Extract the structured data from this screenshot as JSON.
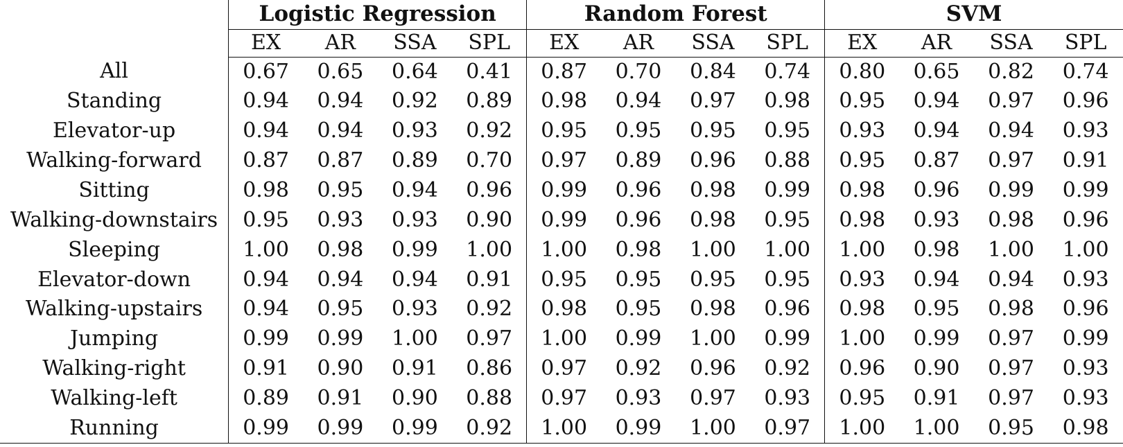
{
  "groups": [
    "Logistic Regression",
    "Random Forest",
    "SVM"
  ],
  "subcolumns": [
    "EX",
    "AR",
    "SSA",
    "SPL"
  ],
  "rows": [
    {
      "label": "All",
      "values": [
        "0.67",
        "0.65",
        "0.64",
        "0.41",
        "0.87",
        "0.70",
        "0.84",
        "0.74",
        "0.80",
        "0.65",
        "0.82",
        "0.74"
      ]
    },
    {
      "label": "Standing",
      "values": [
        "0.94",
        "0.94",
        "0.92",
        "0.89",
        "0.98",
        "0.94",
        "0.97",
        "0.98",
        "0.95",
        "0.94",
        "0.97",
        "0.96"
      ]
    },
    {
      "label": "Elevator-up",
      "values": [
        "0.94",
        "0.94",
        "0.93",
        "0.92",
        "0.95",
        "0.95",
        "0.95",
        "0.95",
        "0.93",
        "0.94",
        "0.94",
        "0.93"
      ]
    },
    {
      "label": "Walking-forward",
      "values": [
        "0.87",
        "0.87",
        "0.89",
        "0.70",
        "0.97",
        "0.89",
        "0.96",
        "0.88",
        "0.95",
        "0.87",
        "0.97",
        "0.91"
      ]
    },
    {
      "label": "Sitting",
      "values": [
        "0.98",
        "0.95",
        "0.94",
        "0.96",
        "0.99",
        "0.96",
        "0.98",
        "0.99",
        "0.98",
        "0.96",
        "0.99",
        "0.99"
      ]
    },
    {
      "label": "Walking-downstairs",
      "values": [
        "0.95",
        "0.93",
        "0.93",
        "0.90",
        "0.99",
        "0.96",
        "0.98",
        "0.95",
        "0.98",
        "0.93",
        "0.98",
        "0.96"
      ]
    },
    {
      "label": "Sleeping",
      "values": [
        "1.00",
        "0.98",
        "0.99",
        "1.00",
        "1.00",
        "0.98",
        "1.00",
        "1.00",
        "1.00",
        "0.98",
        "1.00",
        "1.00"
      ]
    },
    {
      "label": "Elevator-down",
      "values": [
        "0.94",
        "0.94",
        "0.94",
        "0.91",
        "0.95",
        "0.95",
        "0.95",
        "0.95",
        "0.93",
        "0.94",
        "0.94",
        "0.93"
      ]
    },
    {
      "label": "Walking-upstairs",
      "values": [
        "0.94",
        "0.95",
        "0.93",
        "0.92",
        "0.98",
        "0.95",
        "0.98",
        "0.96",
        "0.98",
        "0.95",
        "0.98",
        "0.96"
      ]
    },
    {
      "label": "Jumping",
      "values": [
        "0.99",
        "0.99",
        "1.00",
        "0.97",
        "1.00",
        "0.99",
        "1.00",
        "0.99",
        "1.00",
        "0.99",
        "0.97",
        "0.99"
      ]
    },
    {
      "label": "Walking-right",
      "values": [
        "0.91",
        "0.90",
        "0.91",
        "0.86",
        "0.97",
        "0.92",
        "0.96",
        "0.92",
        "0.96",
        "0.90",
        "0.97",
        "0.93"
      ]
    },
    {
      "label": "Walking-left",
      "values": [
        "0.89",
        "0.91",
        "0.90",
        "0.88",
        "0.97",
        "0.93",
        "0.97",
        "0.93",
        "0.95",
        "0.91",
        "0.97",
        "0.93"
      ]
    },
    {
      "label": "Running",
      "values": [
        "0.99",
        "0.99",
        "0.99",
        "0.92",
        "1.00",
        "0.99",
        "1.00",
        "0.97",
        "1.00",
        "1.00",
        "0.95",
        "0.98"
      ]
    }
  ]
}
